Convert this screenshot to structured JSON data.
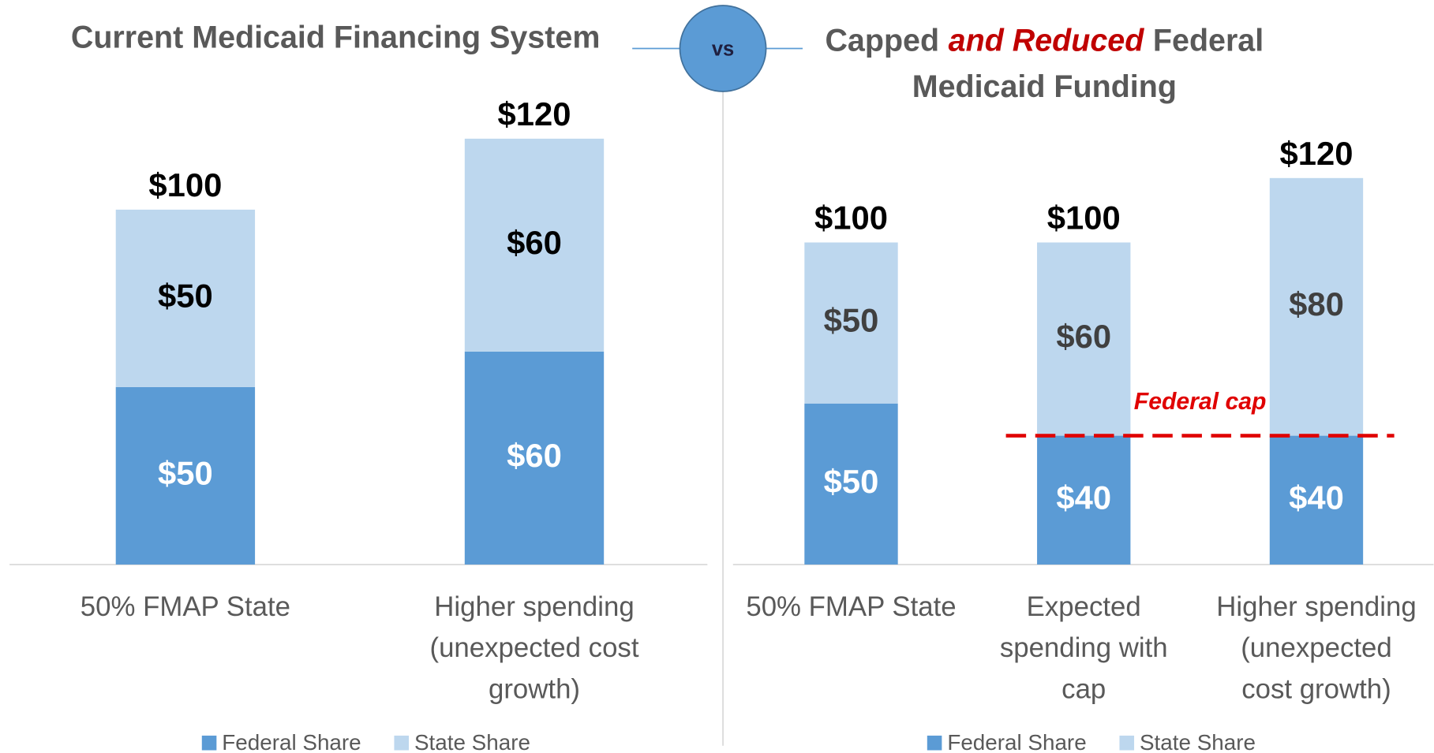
{
  "chart_data": [
    {
      "type": "stacked-bar",
      "title": "Current Medicaid Financing System",
      "categories": [
        [
          "50% FMAP State"
        ],
        [
          "Higher spending",
          "(unexpected cost",
          "growth)"
        ]
      ],
      "series": [
        {
          "name": "Federal Share",
          "color": "#5b9bd5",
          "values": [
            50,
            60
          ],
          "value_labels": [
            "$50",
            "$60"
          ]
        },
        {
          "name": "State Share",
          "color": "#bdd7ee",
          "values": [
            50,
            60
          ],
          "value_labels": [
            "$50",
            "$60"
          ]
        }
      ],
      "totals": [
        100,
        120
      ],
      "total_labels": [
        "$100",
        "$120"
      ],
      "ylim": [
        0,
        140
      ]
    },
    {
      "type": "stacked-bar",
      "title": [
        "Capped",
        "and Reduced",
        "Federal",
        "Medicaid Funding"
      ],
      "categories": [
        [
          "50% FMAP State"
        ],
        [
          "Expected",
          "spending with",
          "cap"
        ],
        [
          "Higher spending",
          "(unexpected",
          "cost growth)"
        ]
      ],
      "series": [
        {
          "name": "Federal Share",
          "color": "#5b9bd5",
          "values": [
            50,
            40,
            40
          ],
          "value_labels": [
            "$50",
            "$40",
            "$40"
          ]
        },
        {
          "name": "State Share",
          "color": "#bdd7ee",
          "values": [
            50,
            60,
            80
          ],
          "value_labels": [
            "$50",
            "$60",
            "$80"
          ]
        }
      ],
      "totals": [
        100,
        100,
        120
      ],
      "total_labels": [
        "$100",
        "$100",
        "$120"
      ],
      "annotation": {
        "label": "Federal cap",
        "value": 40,
        "color": "#e00000"
      },
      "ylim": [
        0,
        150
      ]
    }
  ],
  "separator": "vs"
}
